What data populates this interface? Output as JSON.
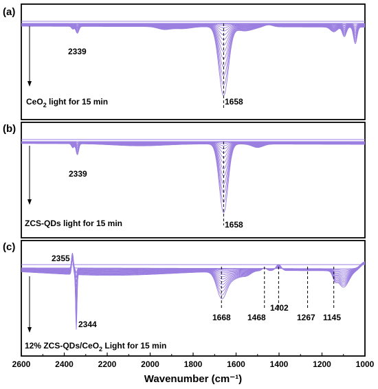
{
  "chart_data": {
    "type": "line",
    "xlabel": "Wavenumber (cm⁻¹)",
    "xlim": [
      2600,
      1000
    ],
    "x_ticks": [
      "2600",
      "2400",
      "2200",
      "2000",
      "1800",
      "1600",
      "1400",
      "1200",
      "1000"
    ],
    "n_spectra": 14,
    "line_color": "#9b7fe0",
    "panels": [
      {
        "label": "(a)",
        "condition_text": {
          "prefix": "CeO",
          "sub": "2",
          "suffix": " light for 15 min"
        },
        "peaks": [
          {
            "position": 2339,
            "label": "2339"
          },
          {
            "position": 1658,
            "label": "1658"
          }
        ],
        "dashed_markers": [
          1658
        ]
      },
      {
        "label": "(b)",
        "condition_text": {
          "prefix": "ZCS-QDs light for 15 min",
          "sub": "",
          "suffix": ""
        },
        "peaks": [
          {
            "position": 2339,
            "label": "2339"
          },
          {
            "position": 1658,
            "label": "1658"
          }
        ],
        "dashed_markers": [
          1658
        ]
      },
      {
        "label": "(c)",
        "condition_text": {
          "prefix": "12% ZCS-QDs/CeO",
          "sub": "2",
          "suffix": " Light for 15 min"
        },
        "peaks": [
          {
            "position": 2355,
            "label": "2355"
          },
          {
            "position": 2344,
            "label": "2344"
          },
          {
            "position": 1668,
            "label": "1668"
          },
          {
            "position": 1468,
            "label": "1468"
          },
          {
            "position": 1402,
            "label": "1402"
          },
          {
            "position": 1267,
            "label": "1267"
          },
          {
            "position": 1145,
            "label": "1145"
          }
        ],
        "dashed_markers": [
          1668,
          1468,
          1402,
          1267,
          1145
        ]
      }
    ]
  }
}
